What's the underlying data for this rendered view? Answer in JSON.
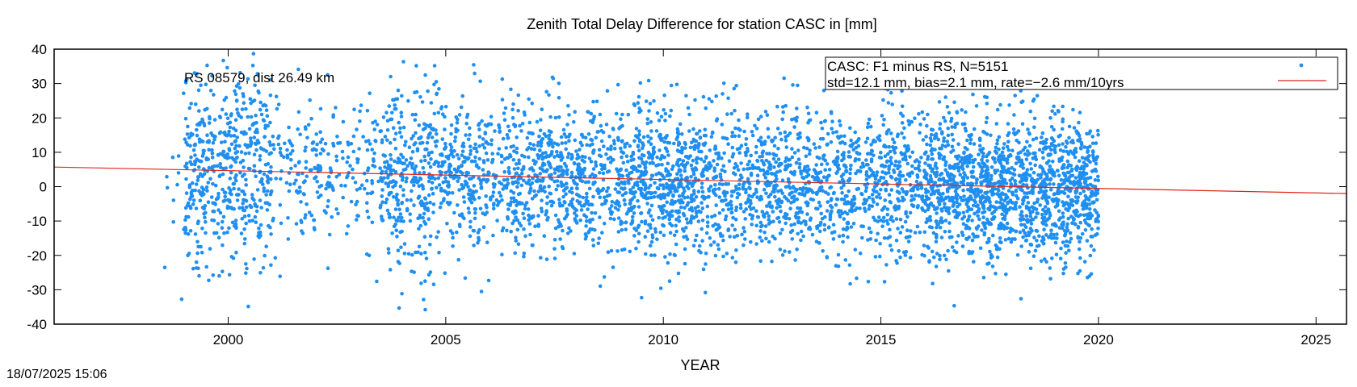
{
  "chart_data": {
    "type": "scatter",
    "title": "Zenith Total Delay Difference for station CASC in [mm]",
    "xlabel": "YEAR",
    "ylabel": "",
    "xlim": [
      1996,
      2025.7
    ],
    "ylim": [
      -40,
      40
    ],
    "x_ticks": [
      2000,
      2005,
      2010,
      2015,
      2020,
      2025
    ],
    "y_ticks": [
      -40,
      -30,
      -20,
      -10,
      0,
      10,
      20,
      30,
      40
    ],
    "grid": false,
    "legend_position": "top-right",
    "annotation": "RS 08579, dist 26.49 km",
    "legend": {
      "lines": [
        "CASC: F1 minus RS, N=5151",
        "std=12.1 mm, bias=2.1 mm, rate=−2.6 mm/10yrs"
      ]
    },
    "series": [
      {
        "name": "CASC: F1 minus RS, N=5151",
        "kind": "points",
        "color": "#1f8ff0",
        "points_summary": {
          "count": 5151,
          "x_range": [
            1998.5,
            2020.0
          ],
          "trend_intercept_at_2000": 4.7,
          "rate_mm_per_decade": -2.6,
          "std_mm": 12.1,
          "bias_mm": 2.1
        },
        "density_by_epoch": [
          {
            "x": [
              1998.5,
              1999.0
            ],
            "density": 0.04
          },
          {
            "x": [
              1999.0,
              2001.0
            ],
            "density": 0.35
          },
          {
            "x": [
              2001.0,
              2003.5
            ],
            "density": 0.12
          },
          {
            "x": [
              2003.5,
              2005.0
            ],
            "density": 0.3
          },
          {
            "x": [
              2005.0,
              2007.0
            ],
            "density": 0.28
          },
          {
            "x": [
              2007.0,
              2012.0
            ],
            "density": 0.32
          },
          {
            "x": [
              2012.0,
              2016.0
            ],
            "density": 0.3
          },
          {
            "x": [
              2016.0,
              2020.0
            ],
            "density": 0.45
          }
        ]
      },
      {
        "name": "",
        "kind": "line",
        "color": "#e2231a",
        "x": [
          1996,
          2025.7
        ],
        "y": [
          5.7,
          -2.0
        ]
      }
    ]
  },
  "timestamp": "18/07/2025 15:06"
}
